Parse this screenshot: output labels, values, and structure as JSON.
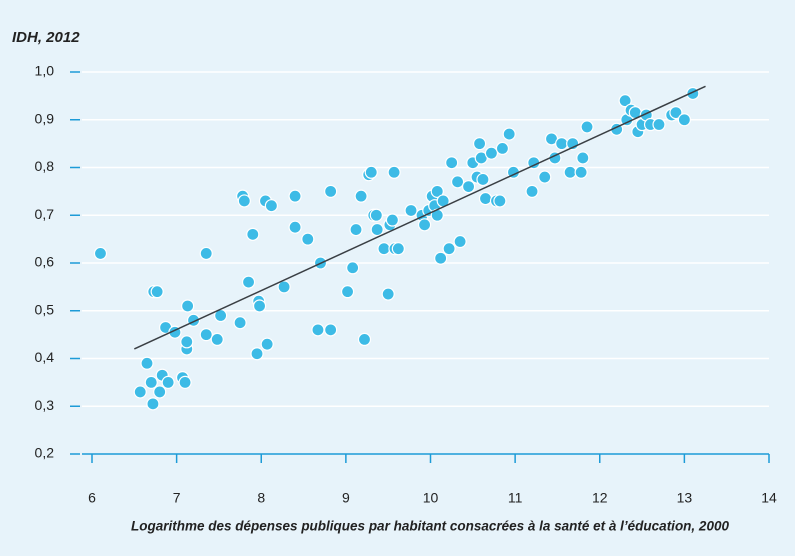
{
  "chart_data": {
    "type": "scatter",
    "title": "IDH, 2012",
    "x_label": "Logarithme des dépenses publiques par habitant consacrées à la santé et à l’éducation, 2000",
    "color": "#3dbbe6",
    "line_color": "#3a3f44",
    "axis_color": "#1d9bd7",
    "grid": true,
    "x": [
      6.1,
      6.57,
      6.65,
      6.7,
      6.72,
      6.73,
      6.77,
      6.8,
      6.83,
      6.87,
      6.9,
      6.98,
      7.07,
      7.1,
      7.12,
      7.12,
      7.13,
      7.2,
      7.35,
      7.35,
      7.48,
      7.52,
      7.75,
      7.78,
      7.8,
      7.85,
      7.9,
      7.95,
      7.97,
      7.98,
      8.05,
      8.07,
      8.12,
      8.27,
      8.4,
      8.4,
      8.55,
      8.67,
      8.7,
      8.82,
      8.82,
      9.02,
      9.08,
      9.12,
      9.18,
      9.22,
      9.27,
      9.3,
      9.33,
      9.36,
      9.37,
      9.45,
      9.5,
      9.52,
      9.55,
      9.57,
      9.58,
      9.62,
      9.77,
      9.9,
      9.93,
      9.98,
      10.02,
      10.05,
      10.08,
      10.08,
      10.12,
      10.15,
      10.22,
      10.25,
      10.32,
      10.35,
      10.45,
      10.5,
      10.55,
      10.58,
      10.6,
      10.62,
      10.65,
      10.72,
      10.78,
      10.82,
      10.85,
      10.93,
      10.98,
      11.2,
      11.22,
      11.35,
      11.43,
      11.47,
      11.55,
      11.65,
      11.68,
      11.78,
      11.8,
      11.85,
      12.2,
      12.3,
      12.32,
      12.37,
      12.42,
      12.45,
      12.5,
      12.55,
      12.6,
      12.7,
      12.85,
      12.9,
      13.0,
      13.1
    ],
    "values": [
      0.62,
      0.33,
      0.39,
      0.35,
      0.305,
      0.54,
      0.54,
      0.33,
      0.365,
      0.465,
      0.35,
      0.455,
      0.36,
      0.35,
      0.42,
      0.435,
      0.51,
      0.48,
      0.45,
      0.62,
      0.44,
      0.49,
      0.475,
      0.74,
      0.73,
      0.56,
      0.66,
      0.41,
      0.52,
      0.51,
      0.73,
      0.43,
      0.72,
      0.55,
      0.74,
      0.675,
      0.65,
      0.46,
      0.6,
      0.75,
      0.46,
      0.54,
      0.59,
      0.67,
      0.74,
      0.44,
      0.785,
      0.79,
      0.7,
      0.7,
      0.67,
      0.63,
      0.535,
      0.68,
      0.69,
      0.79,
      0.63,
      0.63,
      0.71,
      0.7,
      0.68,
      0.71,
      0.74,
      0.72,
      0.7,
      0.75,
      0.61,
      0.73,
      0.63,
      0.81,
      0.77,
      0.645,
      0.76,
      0.81,
      0.78,
      0.85,
      0.82,
      0.775,
      0.735,
      0.83,
      0.73,
      0.73,
      0.84,
      0.87,
      0.79,
      0.75,
      0.81,
      0.78,
      0.86,
      0.82,
      0.85,
      0.79,
      0.85,
      0.79,
      0.82,
      0.885,
      0.88,
      0.94,
      0.9,
      0.92,
      0.915,
      0.875,
      0.89,
      0.91,
      0.89,
      0.89,
      0.91,
      0.915,
      0.9,
      0.955
    ],
    "trendline": {
      "x": [
        6.5,
        13.25
      ],
      "values": [
        0.42,
        0.97
      ]
    },
    "xlim": [
      6,
      14
    ],
    "xticks": [
      6,
      7,
      8,
      9,
      10,
      11,
      12,
      13,
      14
    ],
    "ylim": [
      0.2,
      1.0
    ],
    "yticks": [
      {
        "value": 0.2,
        "label": "0,2"
      },
      {
        "value": 0.3,
        "label": "0,3"
      },
      {
        "value": 0.4,
        "label": "0,4"
      },
      {
        "value": 0.5,
        "label": "0,5"
      },
      {
        "value": 0.6,
        "label": "0,6"
      },
      {
        "value": 0.7,
        "label": "0,7"
      },
      {
        "value": 0.8,
        "label": "0,8"
      },
      {
        "value": 0.9,
        "label": "0,9"
      },
      {
        "value": 1.0,
        "label": "1,0"
      }
    ]
  }
}
